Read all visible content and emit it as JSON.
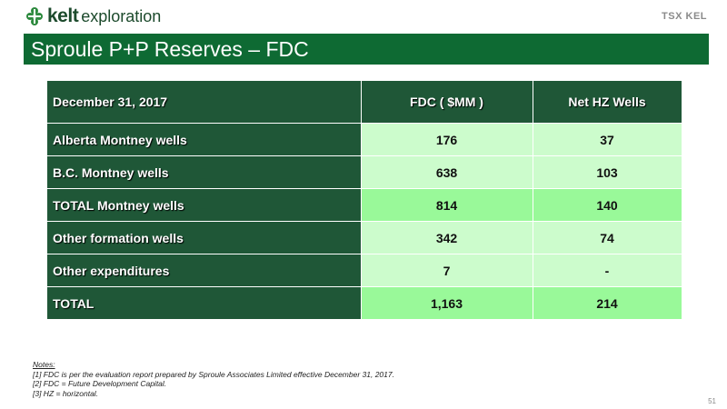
{
  "header": {
    "brand_bold": "kelt",
    "brand_word": "exploration",
    "ticker": "TSX KEL",
    "title": "Sproule P+P Reserves – FDC"
  },
  "table": {
    "headers": [
      "December 31, 2017",
      "FDC ( $MM )",
      "Net HZ Wells"
    ],
    "rows": [
      {
        "label": "Alberta Montney wells",
        "fdc": "176",
        "wells": "37",
        "style": "light"
      },
      {
        "label": "B.C. Montney wells",
        "fdc": "638",
        "wells": "103",
        "style": "light"
      },
      {
        "label": "TOTAL Montney wells",
        "fdc": "814",
        "wells": "140",
        "style": "strong"
      },
      {
        "label": "Other formation wells",
        "fdc": "342",
        "wells": "74",
        "style": "light"
      },
      {
        "label": "Other expenditures",
        "fdc": "7",
        "wells": "-",
        "style": "light"
      },
      {
        "label": "TOTAL",
        "fdc": "1,163",
        "wells": "214",
        "style": "strong"
      }
    ]
  },
  "notes": {
    "heading": "Notes:",
    "items": [
      "[1]  FDC is per the evaluation report prepared by Sproule Associates Limited effective December 31, 2017.",
      "[2]  FDC = Future Development Capital.",
      "[3]  HZ = horizontal."
    ]
  },
  "page_number": "51",
  "colors": {
    "title_bar": "#0e6a33",
    "header_cell": "#1f5737",
    "light_row": "#ccfccc",
    "strong_row": "#99f999"
  }
}
